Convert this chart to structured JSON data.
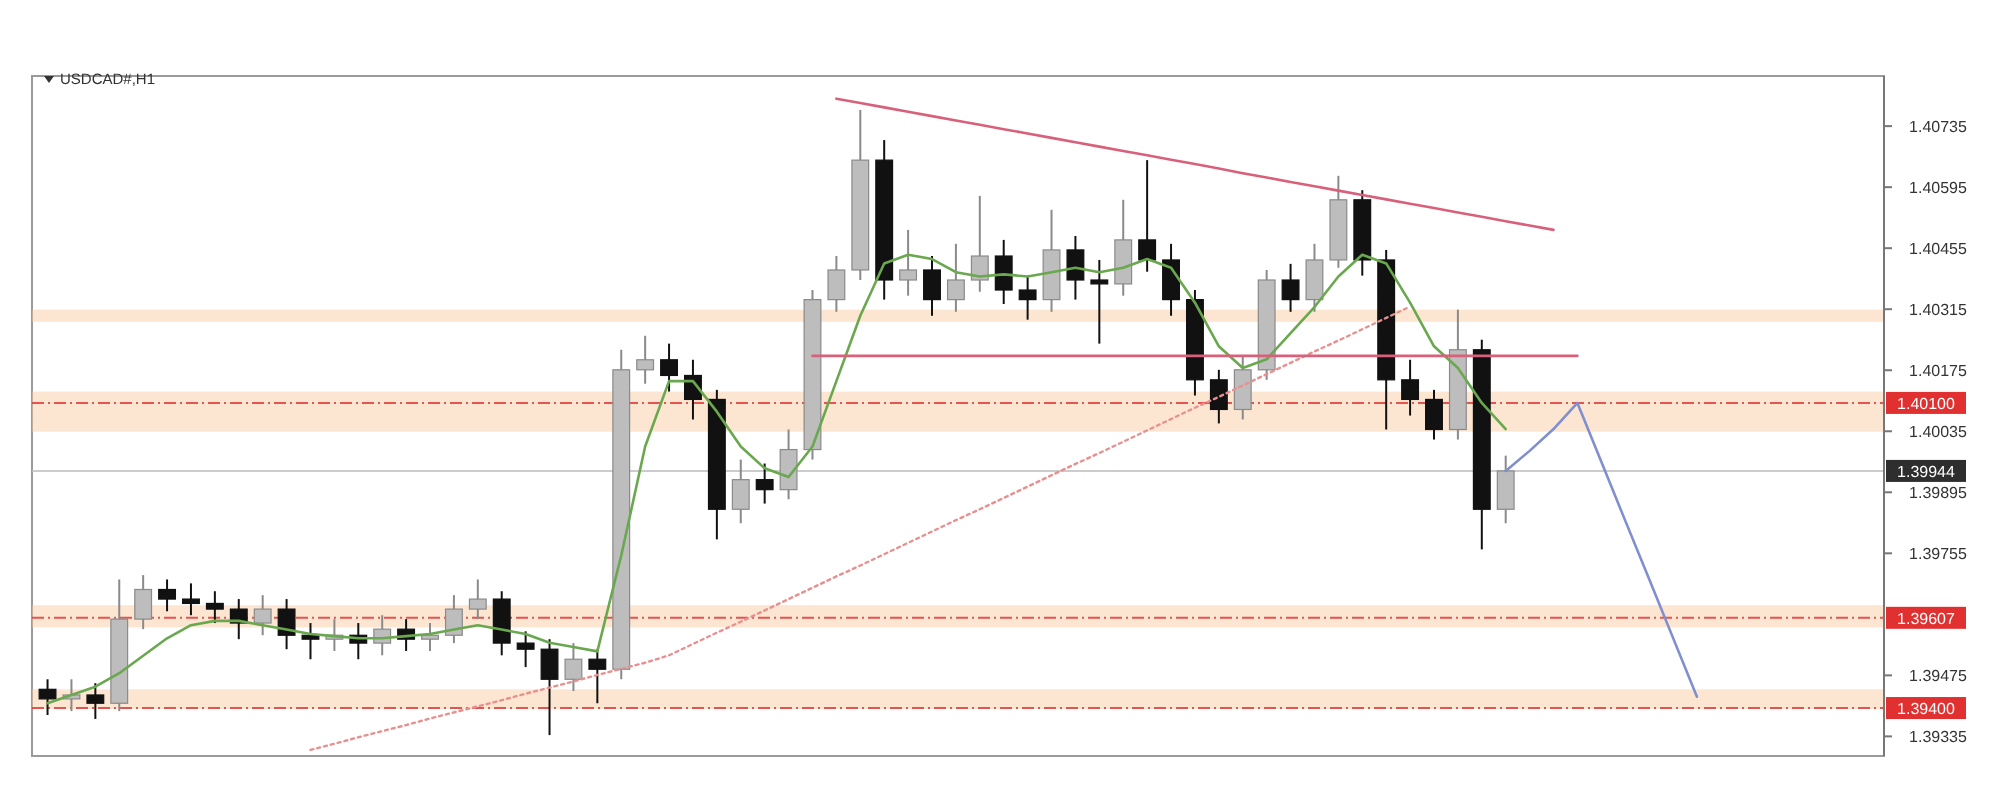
{
  "chart_data": {
    "type": "candlestick",
    "title": "USDCAD#,H1",
    "categories": [
      null,
      null,
      null,
      null,
      null,
      null,
      null,
      null,
      null,
      null,
      null,
      null,
      null,
      null,
      null,
      null,
      null,
      null,
      null,
      null,
      null,
      null,
      null,
      null,
      null,
      null,
      null,
      null,
      null,
      null,
      null,
      null,
      null,
      null,
      null,
      null,
      null,
      null,
      null,
      null,
      null,
      null,
      null,
      null,
      null,
      null,
      null,
      null,
      null,
      null,
      null,
      null,
      null,
      null,
      null,
      null,
      null,
      null,
      null,
      null,
      null,
      null,
      null,
      null,
      null,
      null,
      null,
      null,
      null,
      null,
      null,
      null,
      null,
      null,
      null
    ],
    "ohlc": [
      [
        1.39443,
        1.39466,
        1.39384,
        1.39421
      ],
      [
        1.39421,
        1.39466,
        1.39393,
        1.3943
      ],
      [
        1.3943,
        1.39457,
        1.39375,
        1.39411
      ],
      [
        1.39411,
        1.39695,
        1.39393,
        1.39604
      ],
      [
        1.39604,
        1.39705,
        1.39581,
        1.39672
      ],
      [
        1.39672,
        1.39695,
        1.39622,
        1.3965
      ],
      [
        1.3965,
        1.39686,
        1.39613,
        1.3964
      ],
      [
        1.3964,
        1.39668,
        1.39595,
        1.39627
      ],
      [
        1.39627,
        1.3965,
        1.39558,
        1.39595
      ],
      [
        1.39595,
        1.39659,
        1.39567,
        1.39627
      ],
      [
        1.39627,
        1.3965,
        1.39535,
        1.39567
      ],
      [
        1.39567,
        1.39595,
        1.39512,
        1.39558
      ],
      [
        1.39558,
        1.39604,
        1.39531,
        1.39567
      ],
      [
        1.39567,
        1.39595,
        1.39512,
        1.39549
      ],
      [
        1.39549,
        1.39613,
        1.39521,
        1.39581
      ],
      [
        1.39581,
        1.39604,
        1.39531,
        1.39558
      ],
      [
        1.39558,
        1.39595,
        1.39531,
        1.39567
      ],
      [
        1.39567,
        1.39659,
        1.39549,
        1.39627
      ],
      [
        1.39627,
        1.39695,
        1.39604,
        1.3965
      ],
      [
        1.3965,
        1.39668,
        1.39521,
        1.39549
      ],
      [
        1.39549,
        1.39576,
        1.39494,
        1.39535
      ],
      [
        1.39535,
        1.39558,
        1.39338,
        1.39466
      ],
      [
        1.39466,
        1.39549,
        1.39439,
        1.39512
      ],
      [
        1.39512,
        1.39535,
        1.39411,
        1.39489
      ],
      [
        1.39489,
        1.40222,
        1.39466,
        1.40176
      ],
      [
        1.40176,
        1.40254,
        1.40144,
        1.40199
      ],
      [
        1.40199,
        1.40236,
        1.40126,
        1.40163
      ],
      [
        1.40163,
        1.40199,
        1.40062,
        1.40108
      ],
      [
        1.40108,
        1.4013,
        1.39787,
        1.39856
      ],
      [
        1.39856,
        1.3997,
        1.39824,
        1.39924
      ],
      [
        1.39924,
        1.39961,
        1.39869,
        1.39901
      ],
      [
        1.39901,
        1.40039,
        1.39879,
        1.39993
      ],
      [
        1.39993,
        1.40359,
        1.3997,
        1.40337
      ],
      [
        1.40337,
        1.40437,
        1.40309,
        1.40405
      ],
      [
        1.40405,
        1.40772,
        1.40382,
        1.40657
      ],
      [
        1.40657,
        1.40703,
        1.40337,
        1.40382
      ],
      [
        1.40382,
        1.40497,
        1.40346,
        1.40405
      ],
      [
        1.40405,
        1.40437,
        1.403,
        1.40337
      ],
      [
        1.40337,
        1.40465,
        1.40309,
        1.40382
      ],
      [
        1.40382,
        1.40575,
        1.40355,
        1.40437
      ],
      [
        1.40437,
        1.40474,
        1.40327,
        1.40359
      ],
      [
        1.40359,
        1.40392,
        1.40291,
        1.40337
      ],
      [
        1.40337,
        1.40543,
        1.40309,
        1.40451
      ],
      [
        1.40451,
        1.40483,
        1.40337,
        1.40382
      ],
      [
        1.40382,
        1.40428,
        1.40236,
        1.40373
      ],
      [
        1.40373,
        1.40566,
        1.40346,
        1.40474
      ],
      [
        1.40474,
        1.40657,
        1.40401,
        1.40428
      ],
      [
        1.40428,
        1.40465,
        1.403,
        1.40337
      ],
      [
        1.40337,
        1.40359,
        1.40117,
        1.40153
      ],
      [
        1.40153,
        1.40176,
        1.40053,
        1.40085
      ],
      [
        1.40085,
        1.40208,
        1.40062,
        1.40176
      ],
      [
        1.40176,
        1.40405,
        1.40153,
        1.40382
      ],
      [
        1.40382,
        1.40419,
        1.40309,
        1.40337
      ],
      [
        1.40337,
        1.40465,
        1.40309,
        1.40428
      ],
      [
        1.40428,
        1.40621,
        1.4041,
        1.40566
      ],
      [
        1.40566,
        1.40588,
        1.40392,
        1.40428
      ],
      [
        1.40428,
        1.40451,
        1.40039,
        1.40153
      ],
      [
        1.40153,
        1.40199,
        1.40071,
        1.40108
      ],
      [
        1.40108,
        1.4013,
        1.40016,
        1.40039
      ],
      [
        1.40039,
        1.40314,
        1.40016,
        1.40222
      ],
      [
        1.40222,
        1.40245,
        1.39764,
        1.39856
      ],
      [
        1.39856,
        1.39979,
        1.39824,
        1.39944
      ],
      null,
      null,
      null,
      null,
      null,
      null,
      null,
      null,
      null,
      null,
      null,
      null,
      null
    ],
    "series": [
      {
        "type": "line",
        "color": "#6aa84f",
        "line_style": "solid",
        "values": [
          1.39411,
          1.3943,
          1.39449,
          1.3948,
          1.3952,
          1.3956,
          1.3959,
          1.396,
          1.396,
          1.3959,
          1.3958,
          1.3957,
          1.39565,
          1.3956,
          1.3956,
          1.39565,
          1.3957,
          1.3958,
          1.3959,
          1.3958,
          1.3957,
          1.3955,
          1.3954,
          1.3953,
          1.3975,
          1.4,
          1.4015,
          1.4015,
          1.4008,
          1.4,
          1.3995,
          1.3993,
          1.4,
          1.4015,
          1.403,
          1.4042,
          1.4044,
          1.4043,
          1.404,
          1.4039,
          1.40395,
          1.4039,
          1.404,
          1.4041,
          1.404,
          1.4041,
          1.4043,
          1.4041,
          1.4033,
          1.4023,
          1.4018,
          1.402,
          1.4026,
          1.4032,
          1.4039,
          1.4044,
          1.4042,
          1.4033,
          1.4023,
          1.4018,
          1.401,
          1.4004,
          null,
          null,
          null,
          null,
          null,
          null,
          null,
          null,
          null,
          null,
          null,
          null,
          null
        ]
      },
      {
        "type": "line",
        "color": "#e89090",
        "line_style": "dotted",
        "values": [
          null,
          null,
          null,
          null,
          null,
          null,
          null,
          null,
          null,
          null,
          null,
          1.39304,
          1.39318,
          1.39333,
          1.39347,
          1.39361,
          1.39376,
          1.3939,
          1.39404,
          1.39418,
          1.39433,
          1.39447,
          1.39461,
          1.39476,
          1.3949,
          1.39504,
          1.39521,
          1.39547,
          1.39573,
          1.39598,
          1.39624,
          1.3965,
          1.39676,
          1.39702,
          1.39727,
          1.39753,
          1.39779,
          1.39805,
          1.39831,
          1.39856,
          1.39882,
          1.39908,
          1.39934,
          1.3996,
          1.39985,
          1.40011,
          1.40037,
          1.40063,
          1.40089,
          1.40114,
          1.4014,
          1.40166,
          1.40192,
          1.40218,
          1.40243,
          1.40269,
          1.40295,
          1.40321,
          null,
          null,
          null,
          null,
          null,
          null,
          null,
          null,
          null,
          null,
          null,
          null,
          null,
          null,
          null,
          null,
          null
        ]
      },
      {
        "type": "line",
        "color": "#d9607a",
        "line_style": "solid",
        "values": [
          null,
          null,
          null,
          null,
          null,
          null,
          null,
          null,
          null,
          null,
          null,
          null,
          null,
          null,
          null,
          null,
          null,
          null,
          null,
          null,
          null,
          null,
          null,
          null,
          null,
          null,
          null,
          null,
          null,
          null,
          null,
          null,
          null,
          1.40798,
          1.40788,
          1.40778,
          1.40768,
          1.40758,
          1.40748,
          1.40738,
          1.40728,
          1.40718,
          1.40708,
          1.40698,
          1.40688,
          1.40678,
          1.40668,
          1.40658,
          1.40648,
          1.40638,
          1.40627,
          1.40617,
          1.40607,
          1.40597,
          1.40587,
          1.40577,
          1.40567,
          1.40557,
          1.40547,
          1.40537,
          1.40527,
          1.40517,
          1.40507,
          1.40497,
          null,
          null,
          null,
          null,
          null,
          null,
          null,
          null,
          null,
          null,
          null
        ]
      },
      {
        "type": "line",
        "color": "#d9607a",
        "line_style": "solid",
        "values": [
          null,
          null,
          null,
          null,
          null,
          null,
          null,
          null,
          null,
          null,
          null,
          null,
          null,
          null,
          null,
          null,
          null,
          null,
          null,
          null,
          null,
          null,
          null,
          null,
          null,
          null,
          null,
          null,
          null,
          null,
          null,
          null,
          1.40208,
          1.40208,
          1.40208,
          1.40208,
          1.40208,
          1.40208,
          1.40208,
          1.40208,
          1.40208,
          1.40208,
          1.40208,
          1.40208,
          1.40208,
          1.40208,
          1.40208,
          1.40208,
          1.40208,
          1.40208,
          1.40208,
          1.40208,
          1.40208,
          1.40208,
          1.40208,
          1.40208,
          1.40208,
          1.40208,
          1.40208,
          1.40208,
          1.40208,
          1.40208,
          1.40208,
          1.40208,
          1.40208,
          null,
          null,
          null,
          null,
          null,
          null,
          null,
          null,
          null,
          null
        ]
      },
      {
        "type": "line",
        "color": "#7f8fd0",
        "line_style": "solid",
        "values": [
          null,
          null,
          null,
          null,
          null,
          null,
          null,
          null,
          null,
          null,
          null,
          null,
          null,
          null,
          null,
          null,
          null,
          null,
          null,
          null,
          null,
          null,
          null,
          null,
          null,
          null,
          null,
          null,
          null,
          null,
          null,
          null,
          null,
          null,
          null,
          null,
          null,
          null,
          null,
          null,
          null,
          null,
          null,
          null,
          null,
          null,
          null,
          null,
          null,
          null,
          null,
          null,
          null,
          null,
          null,
          null,
          null,
          null,
          null,
          null,
          null,
          1.39944,
          1.3999,
          1.4004,
          1.401,
          1.39965,
          1.3983,
          1.39696,
          1.39561,
          1.39426,
          null,
          null,
          null,
          null,
          null
        ]
      }
    ],
    "ylim": [
      1.3929,
      1.4085
    ],
    "yticks": [
      1.40735,
      1.40595,
      1.40455,
      1.40315,
      1.40175,
      1.40035,
      1.39895,
      1.39755,
      1.39475,
      1.39335
    ],
    "ref_lines": [
      {
        "axis": "y",
        "value": 1.401,
        "label": "1.40100",
        "color": "#e03030",
        "line_style": "dashed"
      },
      {
        "axis": "y",
        "value": 1.39944,
        "label": "1.39944",
        "color": "#c0c0c0",
        "line_style": "solid"
      },
      {
        "axis": "y",
        "value": 1.39607,
        "label": "1.39607",
        "color": "#e03030",
        "line_style": "dashed"
      },
      {
        "axis": "y",
        "value": 1.394,
        "label": "1.39400",
        "color": "#e03030",
        "line_style": "dashed"
      }
    ],
    "bands": [
      {
        "axis": "y",
        "from": 1.40286,
        "to": 1.40314,
        "color": "#f8c89a"
      },
      {
        "axis": "y",
        "from": 1.40034,
        "to": 1.40126,
        "color": "#f8c89a"
      },
      {
        "axis": "y",
        "from": 1.39585,
        "to": 1.39636,
        "color": "#f8c89a"
      },
      {
        "axis": "y",
        "from": 1.39398,
        "to": 1.39443,
        "color": "#f8c89a"
      }
    ],
    "tick_labels": "y",
    "grid": false
  }
}
